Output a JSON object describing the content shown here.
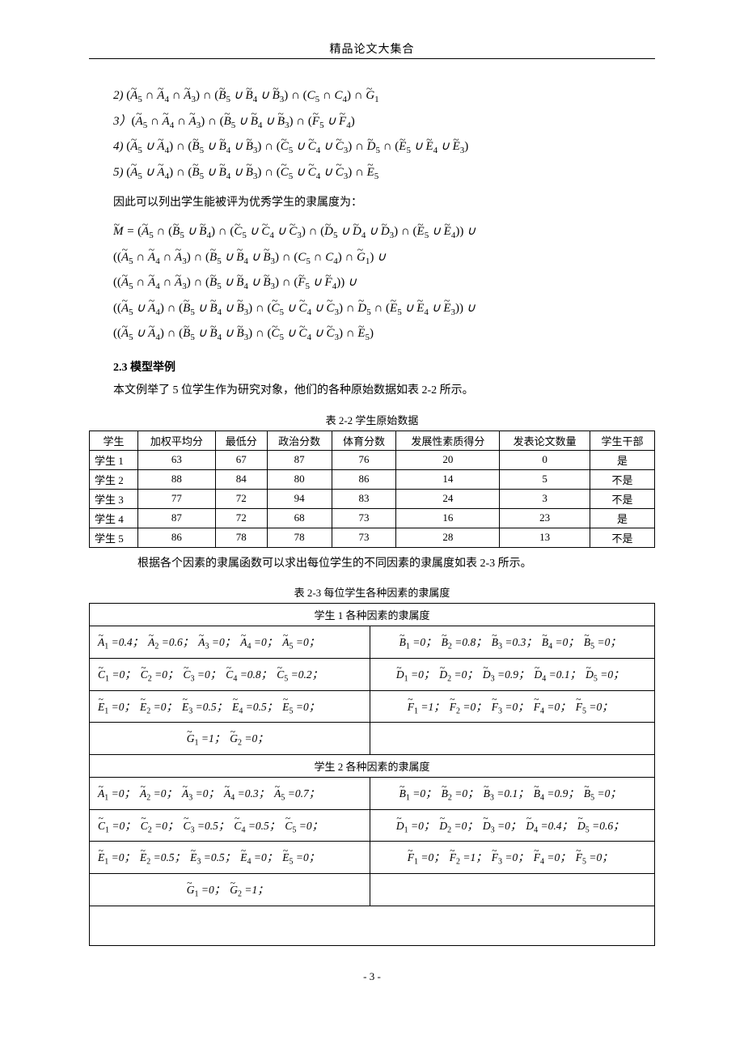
{
  "header": {
    "title": "精品论文大集合"
  },
  "math_lines": [
    "2) <span class='noit'>(</span><span class='tilde'>A</span><span class='sub'>5</span> ∩ <span class='tilde'>A</span><span class='sub'>4</span> ∩ <span class='tilde'>A</span><span class='sub'>3</span><span class='noit'>)</span> ∩ <span class='noit'>(</span><span class='tilde'>B</span><span class='sub'>5</span> ∪ <span class='tilde'>B</span><span class='sub'>4</span> ∪ <span class='tilde'>B</span><span class='sub'>3</span><span class='noit'>)</span> ∩ <span class='noit'>(</span>C<span class='sub'>5</span> ∩ C<span class='sub'>4</span><span class='noit'>)</span> ∩ <span class='tilde'>G</span><span class='sub'>1</span>",
    "3）<span class='noit'>(</span><span class='tilde'>A</span><span class='sub'>5</span> ∩ <span class='tilde'>A</span><span class='sub'>4</span> ∩ <span class='tilde'>A</span><span class='sub'>3</span><span class='noit'>)</span> ∩ <span class='noit'>(</span><span class='tilde'>B</span><span class='sub'>5</span> ∪ <span class='tilde'>B</span><span class='sub'>4</span> ∪ <span class='tilde'>B</span><span class='sub'>3</span><span class='noit'>)</span> ∩ <span class='noit'>(</span><span class='tilde'>F</span><span class='sub'>5</span> ∪ <span class='tilde'>F</span><span class='sub'>4</span><span class='noit'>)</span>",
    "4) <span class='noit'>(</span><span class='tilde'>A</span><span class='sub'>5</span> ∪ <span class='tilde'>A</span><span class='sub'>4</span><span class='noit'>)</span> ∩ <span class='noit'>(</span><span class='tilde'>B</span><span class='sub'>5</span> ∪ <span class='tilde'>B</span><span class='sub'>4</span> ∪ <span class='tilde'>B</span><span class='sub'>3</span><span class='noit'>)</span> ∩ <span class='noit'>(</span><span class='tilde'>C</span><span class='sub'>5</span> ∪ <span class='tilde'>C</span><span class='sub'>4</span> ∪ <span class='tilde'>C</span><span class='sub'>3</span><span class='noit'>)</span> ∩ <span class='tilde'>D</span><span class='sub'>5</span> ∩ <span class='noit'>(</span><span class='tilde'>E</span><span class='sub'>5</span> ∪ <span class='tilde'>E</span><span class='sub'>4</span> ∪ <span class='tilde'>E</span><span class='sub'>3</span><span class='noit'>)</span>",
    "5) <span class='noit'>(</span><span class='tilde'>A</span><span class='sub'>5</span> ∪ <span class='tilde'>A</span><span class='sub'>4</span><span class='noit'>)</span> ∩ <span class='noit'>(</span><span class='tilde'>B</span><span class='sub'>5</span> ∪ <span class='tilde'>B</span><span class='sub'>4</span> ∪ <span class='tilde'>B</span><span class='sub'>3</span><span class='noit'>)</span> ∩ <span class='noit'>(</span><span class='tilde'>C</span><span class='sub'>5</span> ∪ <span class='tilde'>C</span><span class='sub'>4</span> ∪ <span class='tilde'>C</span><span class='sub'>3</span><span class='noit'>)</span> ∩ <span class='tilde'>E</span><span class='sub'>5</span>"
  ],
  "para1": "因此可以列出学生能被评为优秀学生的隶属度为：",
  "math_M": [
    "<span class='tilde'>M</span> = <span class='noit'>(</span><span class='tilde'>A</span><span class='sub'>5</span> ∩ <span class='noit'>(</span><span class='tilde'>B</span><span class='sub'>5</span> ∪ <span class='tilde'>B</span><span class='sub'>4</span><span class='noit'>)</span> ∩ <span class='noit'>(</span><span class='tilde'>C</span><span class='sub'>5</span> ∪ <span class='tilde'>C</span><span class='sub'>4</span> ∪ <span class='tilde'>C</span><span class='sub'>3</span><span class='noit'>)</span> ∩ <span class='noit'>(</span><span class='tilde'>D</span><span class='sub'>5</span> ∪ <span class='tilde'>D</span><span class='sub'>4</span> ∪ <span class='tilde'>D</span><span class='sub'>3</span><span class='noit'>)</span> ∩ <span class='noit'>(</span><span class='tilde'>E</span><span class='sub'>5</span> ∪ <span class='tilde'>E</span><span class='sub'>4</span><span class='noit'>))</span> ∪",
    "<span class='noit'>((</span><span class='tilde'>A</span><span class='sub'>5</span> ∩ <span class='tilde'>A</span><span class='sub'>4</span> ∩ <span class='tilde'>A</span><span class='sub'>3</span><span class='noit'>)</span> ∩ <span class='noit'>(</span><span class='tilde'>B</span><span class='sub'>5</span> ∪ <span class='tilde'>B</span><span class='sub'>4</span> ∪ <span class='tilde'>B</span><span class='sub'>3</span><span class='noit'>)</span> ∩ <span class='noit'>(</span>C<span class='sub'>5</span> ∩ C<span class='sub'>4</span><span class='noit'>)</span> ∩ <span class='tilde'>G</span><span class='sub'>1</span><span class='noit'>)</span> ∪",
    "<span class='noit'>((</span><span class='tilde'>A</span><span class='sub'>5</span> ∩ <span class='tilde'>A</span><span class='sub'>4</span> ∩ <span class='tilde'>A</span><span class='sub'>3</span><span class='noit'>)</span> ∩ <span class='noit'>(</span><span class='tilde'>B</span><span class='sub'>5</span> ∪ <span class='tilde'>B</span><span class='sub'>4</span> ∪ <span class='tilde'>B</span><span class='sub'>3</span><span class='noit'>)</span> ∩ <span class='noit'>(</span><span class='tilde'>F</span><span class='sub'>5</span> ∪ <span class='tilde'>F</span><span class='sub'>4</span><span class='noit'>))</span> ∪",
    "<span class='noit'>((</span><span class='tilde'>A</span><span class='sub'>5</span> ∪ <span class='tilde'>A</span><span class='sub'>4</span><span class='noit'>)</span> ∩ <span class='noit'>(</span><span class='tilde'>B</span><span class='sub'>5</span> ∪ <span class='tilde'>B</span><span class='sub'>4</span> ∪ <span class='tilde'>B</span><span class='sub'>3</span><span class='noit'>)</span> ∩ <span class='noit'>(</span><span class='tilde'>C</span><span class='sub'>5</span> ∪ <span class='tilde'>C</span><span class='sub'>4</span> ∪ <span class='tilde'>C</span><span class='sub'>3</span><span class='noit'>)</span> ∩ <span class='tilde'>D</span><span class='sub'>5</span> ∩ <span class='noit'>(</span><span class='tilde'>E</span><span class='sub'>5</span> ∪ <span class='tilde'>E</span><span class='sub'>4</span> ∪ <span class='tilde'>E</span><span class='sub'>3</span><span class='noit'>))</span> ∪",
    "<span class='noit'>((</span><span class='tilde'>A</span><span class='sub'>5</span> ∪ <span class='tilde'>A</span><span class='sub'>4</span><span class='noit'>)</span> ∩ <span class='noit'>(</span><span class='tilde'>B</span><span class='sub'>5</span> ∪ <span class='tilde'>B</span><span class='sub'>4</span> ∪ <span class='tilde'>B</span><span class='sub'>3</span><span class='noit'>)</span> ∩ <span class='noit'>(</span><span class='tilde'>C</span><span class='sub'>5</span> ∪ <span class='tilde'>C</span><span class='sub'>4</span> ∪ <span class='tilde'>C</span><span class='sub'>3</span><span class='noit'>)</span> ∩ <span class='tilde'>E</span><span class='sub'>5</span><span class='noit'>)</span>"
  ],
  "section_head": "2.3 模型举例",
  "para2": "本文例举了 5 位学生作为研究对象，他们的各种原始数据如表 2-2 所示。",
  "table1": {
    "caption": "表 2-2  学生原始数据",
    "columns": [
      "学生",
      "加权平均分",
      "最低分",
      "政治分数",
      "体育分数",
      "发展性素质得分",
      "发表论文数量",
      "学生干部"
    ],
    "rows": [
      [
        "学生 1",
        "63",
        "67",
        "87",
        "76",
        "20",
        "0",
        "是"
      ],
      [
        "学生 2",
        "88",
        "84",
        "80",
        "86",
        "14",
        "5",
        "不是"
      ],
      [
        "学生 3",
        "77",
        "72",
        "94",
        "83",
        "24",
        "3",
        "不是"
      ],
      [
        "学生 4",
        "87",
        "72",
        "68",
        "73",
        "16",
        "23",
        "是"
      ],
      [
        "学生 5",
        "86",
        "78",
        "78",
        "73",
        "28",
        "13",
        "不是"
      ]
    ]
  },
  "para3": "根据各个因素的隶属函数可以求出每位学生的不同因素的隶属度如表 2-3 所示。",
  "table2": {
    "caption": "表 2-3  每位学生各种因素的隶属度",
    "groups": [
      {
        "title": "学生 1 各种因素的隶属度",
        "rows": [
          [
            {
              "var": "A",
              "vals": [
                "0.4",
                "0.6",
                "0",
                "0",
                "0"
              ]
            },
            {
              "var": "B",
              "vals": [
                "0",
                "0.8",
                "0.3",
                "0",
                "0"
              ]
            }
          ],
          [
            {
              "var": "C",
              "vals": [
                "0",
                "0",
                "0",
                "0.8",
                "0.2"
              ]
            },
            {
              "var": "D",
              "vals": [
                "0",
                "0",
                "0.9",
                "0.1",
                "0"
              ]
            }
          ],
          [
            {
              "var": "E",
              "vals": [
                "0",
                "0",
                "0.5",
                "0.5",
                "0"
              ]
            },
            {
              "var": "F",
              "vals": [
                "1",
                "0",
                "0",
                "0",
                "0"
              ]
            }
          ],
          [
            {
              "var": "G",
              "vals": [
                "1",
                "0"
              ]
            },
            null
          ]
        ]
      },
      {
        "title": "学生 2 各种因素的隶属度",
        "rows": [
          [
            {
              "var": "A",
              "vals": [
                "0",
                "0",
                "0",
                "0.3",
                "0.7"
              ]
            },
            {
              "var": "B",
              "vals": [
                "0",
                "0",
                "0.1",
                "0.9",
                "0"
              ]
            }
          ],
          [
            {
              "var": "C",
              "vals": [
                "0",
                "0",
                "0.5",
                "0.5",
                "0"
              ]
            },
            {
              "var": "D",
              "vals": [
                "0",
                "0",
                "0",
                "0.4",
                "0.6"
              ]
            }
          ],
          [
            {
              "var": "E",
              "vals": [
                "0",
                "0.5",
                "0.5",
                "0",
                "0"
              ]
            },
            {
              "var": "F",
              "vals": [
                "0",
                "1",
                "0",
                "0",
                "0"
              ]
            }
          ],
          [
            {
              "var": "G",
              "vals": [
                "0",
                "1"
              ]
            },
            null
          ]
        ]
      }
    ]
  },
  "page_number": "- 3 -"
}
